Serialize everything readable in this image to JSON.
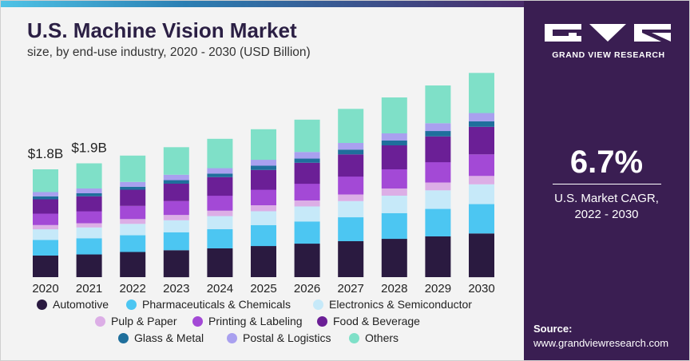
{
  "header": {
    "title": "U.S. Machine Vision Market",
    "subtitle": "size, by end-use industry, 2020 - 2030 (USD Billion)"
  },
  "sidebar": {
    "brand": "GRAND VIEW RESEARCH",
    "cagr_value": "6.7%",
    "cagr_label_line1": "U.S. Market CAGR,",
    "cagr_label_line2": "2022 - 2030",
    "source_label": "Source:",
    "source_url": "www.grandviewresearch.com"
  },
  "colors": {
    "panel": "#3a1e52",
    "title": "#2b1f44"
  },
  "chart_data": {
    "type": "bar",
    "stacked": true,
    "title": "U.S. Machine Vision Market",
    "subtitle": "size, by end-use industry, 2020 - 2030 (USD Billion)",
    "categories": [
      "2020",
      "2021",
      "2022",
      "2023",
      "2024",
      "2025",
      "2026",
      "2027",
      "2028",
      "2029",
      "2030"
    ],
    "annotations": [
      {
        "category": "2020",
        "text": "$1.8B"
      },
      {
        "category": "2021",
        "text": "$1.9B"
      }
    ],
    "totals": [
      1.8,
      1.9,
      2.03,
      2.17,
      2.31,
      2.47,
      2.63,
      2.81,
      3.0,
      3.2,
      3.41
    ],
    "legend_position": "bottom",
    "grid": false,
    "series": [
      {
        "name": "Automotive",
        "color": "#2a1a40",
        "values": [
          0.36,
          0.38,
          0.42,
          0.45,
          0.48,
          0.52,
          0.56,
          0.6,
          0.64,
          0.68,
          0.73
        ]
      },
      {
        "name": "Pharmaceuticals & Chemicals",
        "color": "#4cc6f2",
        "values": [
          0.26,
          0.27,
          0.28,
          0.3,
          0.32,
          0.35,
          0.37,
          0.4,
          0.43,
          0.46,
          0.49
        ]
      },
      {
        "name": "Electronics & Semiconductor",
        "color": "#c6e9f9",
        "values": [
          0.18,
          0.18,
          0.19,
          0.2,
          0.22,
          0.23,
          0.25,
          0.27,
          0.29,
          0.31,
          0.33
        ]
      },
      {
        "name": "Pulp & Paper",
        "color": "#dcaee6",
        "values": [
          0.07,
          0.07,
          0.08,
          0.09,
          0.09,
          0.1,
          0.1,
          0.11,
          0.12,
          0.13,
          0.14
        ]
      },
      {
        "name": "Printing & Labeling",
        "color": "#a349d6",
        "values": [
          0.19,
          0.2,
          0.22,
          0.23,
          0.25,
          0.26,
          0.28,
          0.3,
          0.32,
          0.34,
          0.36
        ]
      },
      {
        "name": "Food & Beverage",
        "color": "#6b1f96",
        "values": [
          0.24,
          0.25,
          0.27,
          0.29,
          0.31,
          0.33,
          0.35,
          0.37,
          0.4,
          0.43,
          0.46
        ]
      },
      {
        "name": "Glass & Metal",
        "color": "#1f6f9c",
        "values": [
          0.05,
          0.05,
          0.05,
          0.06,
          0.06,
          0.07,
          0.07,
          0.08,
          0.08,
          0.09,
          0.09
        ]
      },
      {
        "name": "Postal & Logistics",
        "color": "#a9a0ef",
        "values": [
          0.07,
          0.08,
          0.08,
          0.09,
          0.09,
          0.1,
          0.11,
          0.11,
          0.12,
          0.13,
          0.14
        ]
      },
      {
        "name": "Others",
        "color": "#7fe0c8",
        "values": [
          0.38,
          0.42,
          0.44,
          0.46,
          0.49,
          0.51,
          0.54,
          0.57,
          0.6,
          0.63,
          0.67
        ]
      }
    ]
  }
}
